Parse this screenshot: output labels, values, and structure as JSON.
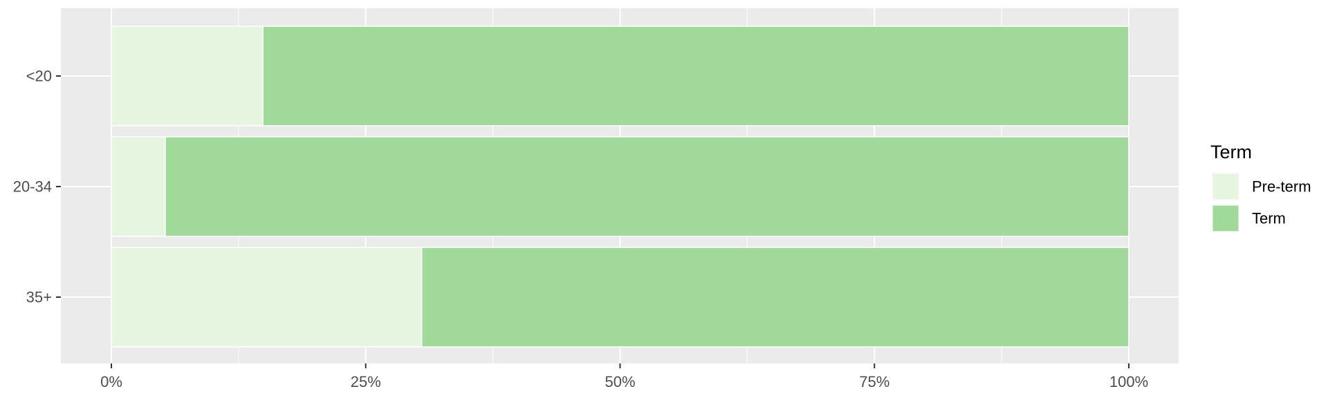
{
  "chart_data": {
    "type": "bar",
    "orientation": "horizontal",
    "stacked": "percent",
    "categories": [
      "<20",
      "20-34",
      "35+"
    ],
    "series": [
      {
        "name": "Pre-term",
        "values": [
          0.149,
          0.053,
          0.305
        ],
        "color": "#e5f5e0"
      },
      {
        "name": "Term",
        "values": [
          0.851,
          0.947,
          0.695
        ],
        "color": "#a1d99b"
      }
    ],
    "xlim": [
      0,
      1
    ],
    "x_ticks": [
      0,
      0.25,
      0.5,
      0.75,
      1
    ],
    "x_tick_labels": [
      "0%",
      "25%",
      "50%",
      "75%",
      "100%"
    ],
    "grid": true,
    "legend": {
      "title": "Term",
      "position": "right"
    },
    "panel_background": "#ebebeb",
    "grid_color": "#ffffff"
  }
}
